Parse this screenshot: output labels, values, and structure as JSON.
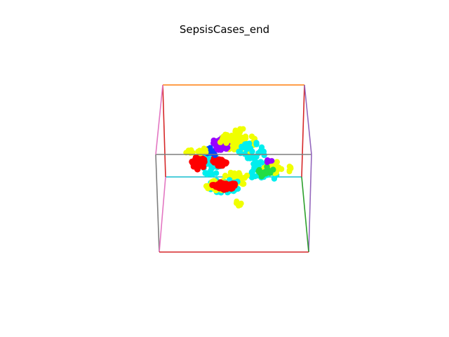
{
  "figure": {
    "title": "SepsisCases_end"
  },
  "colors": {
    "background": "#ffffff",
    "red": "#ff0000",
    "yellow": "#f0ff00",
    "cyan": "#00eeee",
    "purple": "#9900ff",
    "green": "#22dd44",
    "blue": "#0044ff"
  },
  "box_edge_colors": {
    "top_back": "#ff7f0e",
    "top_front": "#7f7f7f",
    "left_back": "#d62728",
    "right_back": "#d62728",
    "left_front": "#e377c2",
    "right_front": "#9467bd",
    "bottom_back": "#17becf",
    "bottom_front": "#d62728",
    "left_bottom_front": "#e377c2",
    "right_bottom_front": "#2ca02c",
    "left_vertical_front": "#7f7f7f",
    "right_vertical_back": "#d62728"
  }
}
